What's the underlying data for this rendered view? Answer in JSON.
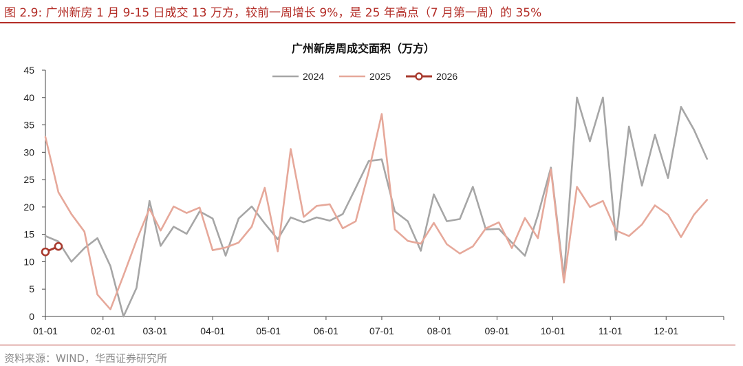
{
  "figure": {
    "caption": "图 2.9:  广州新房 1 月 9-15 日成交 13 万方，较前一周增长 9%，是 25 年高点（7 月第一周）的 35%",
    "source": "资料来源：WIND，华西证券研究所"
  },
  "colors": {
    "accent": "#b32c26",
    "s2024": "#a6a6a6",
    "s2025": "#e6a89a",
    "s2026": "#a83a2e"
  },
  "chart_data": {
    "type": "line",
    "title": "广州新房周成交面积（万方）",
    "xlabel": "",
    "ylabel": "",
    "x_tick_labels": [
      "01-01",
      "02-01",
      "03-01",
      "04-01",
      "05-01",
      "06-01",
      "07-01",
      "08-01",
      "09-01",
      "10-01",
      "11-01",
      "12-01"
    ],
    "ylim": [
      0,
      45
    ],
    "y_ticks": [
      0,
      5,
      10,
      15,
      20,
      25,
      30,
      35,
      40,
      45
    ],
    "legend_position": "top-center",
    "grid": false,
    "series": [
      {
        "name": "2024",
        "x": [
          "01-01",
          "01-08",
          "01-15",
          "01-22",
          "01-29",
          "02-05",
          "02-12",
          "02-19",
          "02-26",
          "03-04",
          "03-11",
          "03-18",
          "03-25",
          "04-01",
          "04-08",
          "04-15",
          "04-22",
          "04-29",
          "05-06",
          "05-13",
          "05-20",
          "05-27",
          "06-03",
          "06-10",
          "06-17",
          "06-24",
          "07-01",
          "07-08",
          "07-15",
          "07-22",
          "07-29",
          "08-05",
          "08-12",
          "08-19",
          "08-26",
          "09-02",
          "09-09",
          "09-16",
          "09-23",
          "09-30",
          "10-07",
          "10-14",
          "10-21",
          "10-28",
          "11-04",
          "11-11",
          "11-18",
          "11-25",
          "12-02",
          "12-09",
          "12-16",
          "12-23",
          "12-30"
        ],
        "values": [
          14.7,
          13.7,
          10.0,
          12.5,
          14.3,
          9.2,
          0.0,
          5.2,
          21.1,
          12.9,
          16.4,
          15.1,
          19.2,
          17.9,
          11.1,
          17.9,
          20.1,
          17.0,
          14.1,
          18.1,
          17.2,
          18.1,
          17.5,
          18.7,
          23.5,
          28.4,
          28.7,
          19.2,
          17.4,
          12.0,
          22.3,
          17.4,
          17.8,
          23.7,
          15.9,
          16.0,
          13.5,
          11.1,
          18.5,
          27.2,
          7.1,
          40.0,
          32.0,
          40.0,
          14.0,
          34.7,
          23.9,
          33.2,
          25.3,
          38.3,
          34.1,
          28.8,
          null
        ]
      },
      {
        "name": "2025",
        "x": [
          "01-01",
          "01-08",
          "01-15",
          "01-22",
          "01-29",
          "02-05",
          "02-12",
          "02-19",
          "02-26",
          "03-04",
          "03-11",
          "03-18",
          "03-25",
          "04-01",
          "04-08",
          "04-15",
          "04-22",
          "04-29",
          "05-06",
          "05-13",
          "05-20",
          "05-27",
          "06-03",
          "06-10",
          "06-17",
          "06-24",
          "07-01",
          "07-08",
          "07-15",
          "07-22",
          "07-29",
          "08-05",
          "08-12",
          "08-19",
          "08-26",
          "09-02",
          "09-09",
          "09-16",
          "09-23",
          "09-30",
          "10-07",
          "10-14",
          "10-21",
          "10-28",
          "11-04",
          "11-11",
          "11-18",
          "11-25",
          "12-02",
          "12-09",
          "12-16",
          "12-23",
          "12-30"
        ],
        "values": [
          32.8,
          22.7,
          18.7,
          15.5,
          4.0,
          1.3,
          7.5,
          13.9,
          19.7,
          15.7,
          20.1,
          18.9,
          19.9,
          12.1,
          12.6,
          13.5,
          16.4,
          23.5,
          11.9,
          30.6,
          18.2,
          20.2,
          20.5,
          16.1,
          17.4,
          26.5,
          37.0,
          15.9,
          13.8,
          13.3,
          17.1,
          13.2,
          11.5,
          12.8,
          16.1,
          17.2,
          12.5,
          18.0,
          14.3,
          26.9,
          6.2,
          23.7,
          20.0,
          21.1,
          15.7,
          14.7,
          16.8,
          20.3,
          18.6,
          14.5,
          18.6,
          21.3,
          null
        ]
      },
      {
        "name": "2026",
        "x": [
          "01-01",
          "01-08"
        ],
        "values": [
          11.8,
          12.8
        ]
      }
    ]
  }
}
